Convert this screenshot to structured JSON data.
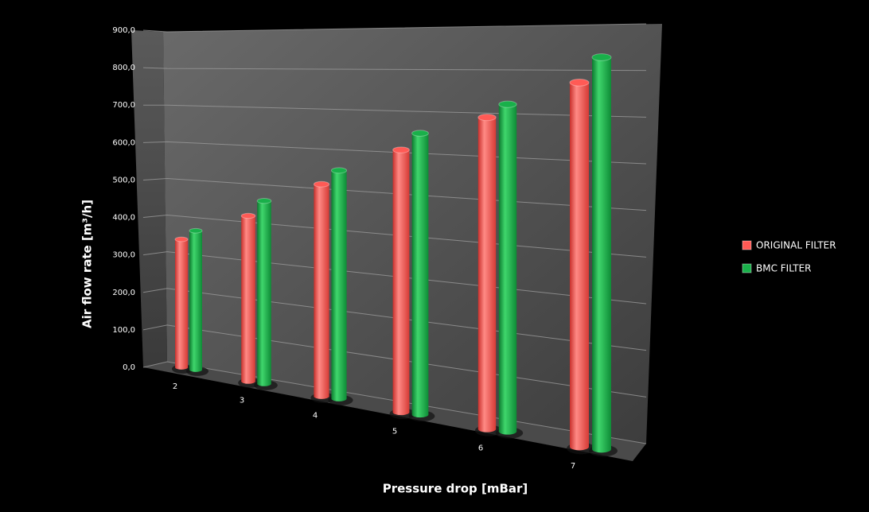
{
  "chart_data": {
    "type": "bar3d",
    "x_label": "Pressure drop [mBar]",
    "y_label": "Air flow rate [m³/h]",
    "categories": [
      "2",
      "3",
      "4",
      "5",
      "6",
      "7"
    ],
    "series": [
      {
        "name": "ORIGINAL FILTER",
        "color": "#ff5a55",
        "values": [
          350,
          430,
          525,
          620,
          705,
          790
        ]
      },
      {
        "name": "BMC FILTER",
        "color": "#19b04a",
        "values": [
          380,
          475,
          565,
          665,
          740,
          850
        ]
      }
    ],
    "ylim": [
      0,
      900
    ],
    "yticks": [
      {
        "value": 0,
        "label": "0,0"
      },
      {
        "value": 100,
        "label": "100,0"
      },
      {
        "value": 200,
        "label": "200,0"
      },
      {
        "value": 300,
        "label": "300,0"
      },
      {
        "value": 400,
        "label": "400,0"
      },
      {
        "value": 500,
        "label": "500,0"
      },
      {
        "value": 600,
        "label": "600,0"
      },
      {
        "value": 700,
        "label": "700,0"
      },
      {
        "value": 800,
        "label": "800,0"
      },
      {
        "value": 900,
        "label": "900,0"
      }
    ],
    "grid": true,
    "legend": "right"
  }
}
